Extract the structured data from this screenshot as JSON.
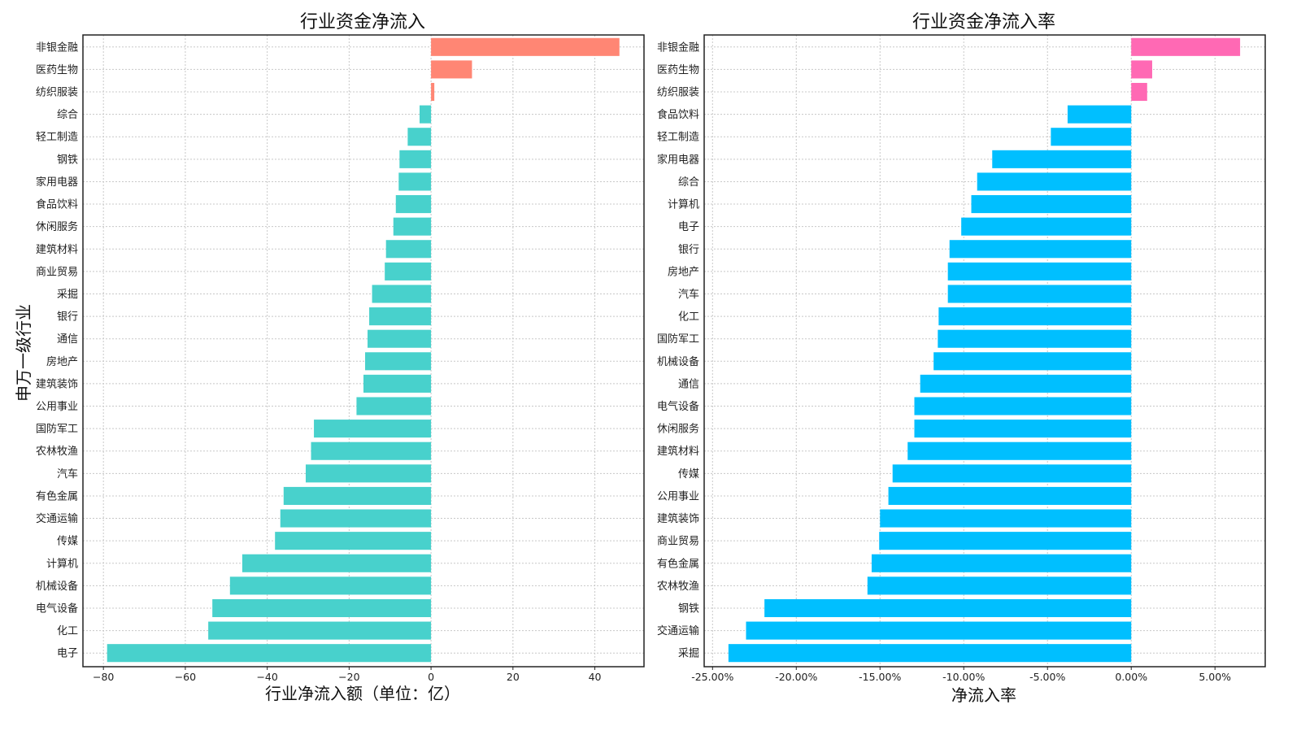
{
  "chart_data": [
    {
      "type": "bar",
      "orientation": "horizontal",
      "title": "行业资金净流入",
      "xlabel": "行业净流入额（单位：亿）",
      "ylabel": "申万一级行业",
      "xlim": [
        -85,
        52
      ],
      "xticks": [
        -80,
        -60,
        -40,
        -20,
        0,
        20,
        40
      ],
      "xtick_labels": [
        "−80",
        "−60",
        "−40",
        "−20",
        "0",
        "20",
        "40"
      ],
      "grid": true,
      "positive_color": "#ff8674",
      "negative_color": "#48d1cc",
      "categories": [
        "非银金融",
        "医药生物",
        "纺织服装",
        "综合",
        "轻工制造",
        "钢铁",
        "家用电器",
        "食品饮料",
        "休闲服务",
        "建筑材料",
        "商业贸易",
        "采掘",
        "银行",
        "通信",
        "房地产",
        "建筑装饰",
        "公用事业",
        "国防军工",
        "农林牧渔",
        "汽车",
        "有色金属",
        "交通运输",
        "传媒",
        "计算机",
        "机械设备",
        "电气设备",
        "化工",
        "电子"
      ],
      "values": [
        46,
        10,
        0.8,
        -2.8,
        -5.7,
        -7.7,
        -7.9,
        -8.6,
        -9.2,
        -11.0,
        -11.3,
        -14.4,
        -15.1,
        -15.5,
        -16.1,
        -16.5,
        -18.2,
        -28.6,
        -29.3,
        -30.6,
        -36.0,
        -36.8,
        -38.1,
        -46.1,
        -49.1,
        -53.4,
        -54.4,
        -79.1
      ]
    },
    {
      "type": "bar",
      "orientation": "horizontal",
      "title": "行业资金净流入率",
      "xlabel": "净流入率",
      "ylabel": "",
      "xlim": [
        -25.5,
        8.0
      ],
      "xticks": [
        -25,
        -20,
        -15,
        -10,
        -5,
        0,
        5
      ],
      "xtick_labels": [
        "-25.00%",
        "-20.00%",
        "-15.00%",
        "-10.00%",
        "-5.00%",
        "0.00%",
        "5.00%"
      ],
      "grid": true,
      "positive_color": "#ff69b4",
      "negative_color": "#00bfff",
      "categories": [
        "非银金融",
        "医药生物",
        "纺织服装",
        "食品饮料",
        "轻工制造",
        "家用电器",
        "综合",
        "计算机",
        "电子",
        "银行",
        "房地产",
        "汽车",
        "化工",
        "国防军工",
        "机械设备",
        "通信",
        "电气设备",
        "休闲服务",
        "建筑材料",
        "传媒",
        "公用事业",
        "建筑装饰",
        "商业贸易",
        "有色金属",
        "农林牧渔",
        "钢铁",
        "交通运输",
        "采掘"
      ],
      "values": [
        6.5,
        1.25,
        0.95,
        -3.8,
        -4.8,
        -8.3,
        -9.2,
        -9.55,
        -10.15,
        -10.85,
        -10.95,
        -10.95,
        -11.5,
        -11.55,
        -11.8,
        -12.6,
        -12.95,
        -12.95,
        -13.35,
        -14.25,
        -14.5,
        -15.0,
        -15.05,
        -15.5,
        -15.75,
        -21.9,
        -23.0,
        -24.05
      ]
    }
  ]
}
